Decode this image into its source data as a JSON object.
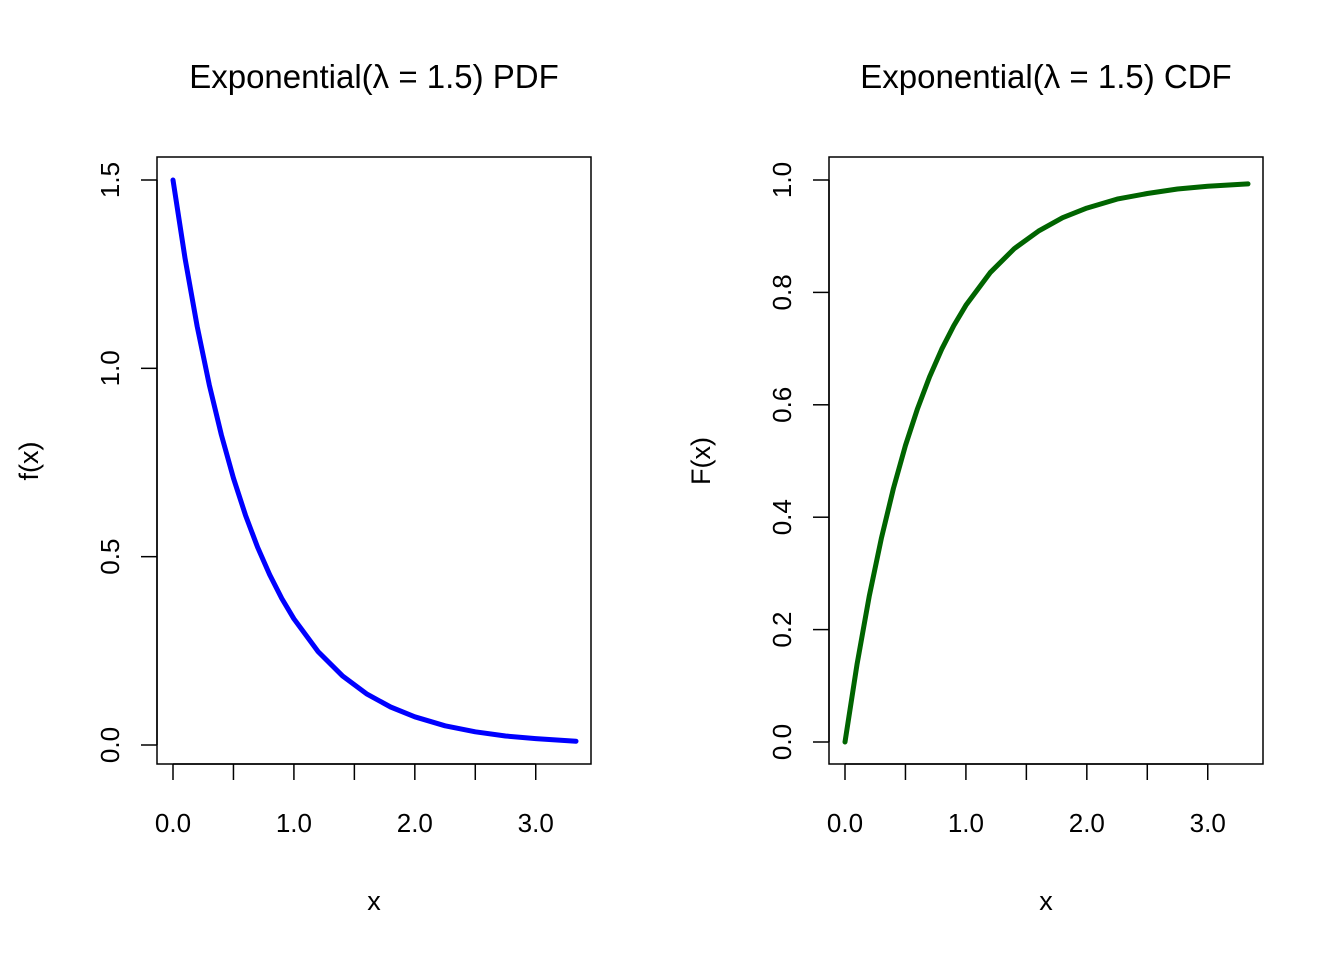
{
  "chart_data": [
    {
      "type": "line",
      "title": "Exponential(λ = 1.5) PDF",
      "xlabel": "x",
      "ylabel": "f(x)",
      "xlim": [
        0,
        3.333
      ],
      "ylim": [
        0,
        1.5
      ],
      "x_ticks": [
        "0.0",
        "1.0",
        "2.0",
        "3.0"
      ],
      "x_tick_values": [
        0,
        1,
        2,
        3
      ],
      "x_minor_ticks": [
        0.5,
        1.5,
        2.5
      ],
      "y_ticks": [
        "0.0",
        "0.5",
        "1.0",
        "1.5"
      ],
      "y_tick_values": [
        0,
        0.5,
        1,
        1.5
      ],
      "series": [
        {
          "color": "#0000FF",
          "x": [
            0,
            0.1,
            0.2,
            0.3,
            0.4,
            0.5,
            0.6,
            0.7,
            0.8,
            0.9,
            1.0,
            1.2,
            1.4,
            1.6,
            1.8,
            2.0,
            2.25,
            2.5,
            2.75,
            3.0,
            3.333
          ],
          "y": [
            1.5,
            1.291,
            1.111,
            0.956,
            0.823,
            0.708,
            0.61,
            0.525,
            0.452,
            0.389,
            0.335,
            0.248,
            0.184,
            0.136,
            0.101,
            0.075,
            0.051,
            0.035,
            0.024,
            0.017,
            0.01
          ]
        }
      ],
      "grid": false,
      "legend": "none"
    },
    {
      "type": "line",
      "title": "Exponential(λ = 1.5) CDF",
      "xlabel": "x",
      "ylabel": "F(x)",
      "xlim": [
        0,
        3.333
      ],
      "ylim": [
        0,
        1.0
      ],
      "x_ticks": [
        "0.0",
        "1.0",
        "2.0",
        "3.0"
      ],
      "x_tick_values": [
        0,
        1,
        2,
        3
      ],
      "x_minor_ticks": [
        0.5,
        1.5,
        2.5
      ],
      "y_ticks": [
        "0.0",
        "0.2",
        "0.4",
        "0.6",
        "0.8",
        "1.0"
      ],
      "y_tick_values": [
        0,
        0.2,
        0.4,
        0.6,
        0.8,
        1.0
      ],
      "series": [
        {
          "color": "#006400",
          "x": [
            0,
            0.1,
            0.2,
            0.3,
            0.4,
            0.5,
            0.6,
            0.7,
            0.8,
            0.9,
            1.0,
            1.2,
            1.4,
            1.6,
            1.8,
            2.0,
            2.25,
            2.5,
            2.75,
            3.0,
            3.333
          ],
          "y": [
            0,
            0.139,
            0.259,
            0.362,
            0.451,
            0.528,
            0.593,
            0.65,
            0.699,
            0.741,
            0.777,
            0.835,
            0.878,
            0.909,
            0.933,
            0.95,
            0.966,
            0.976,
            0.984,
            0.989,
            0.993
          ]
        }
      ],
      "grid": false,
      "legend": "none"
    }
  ]
}
